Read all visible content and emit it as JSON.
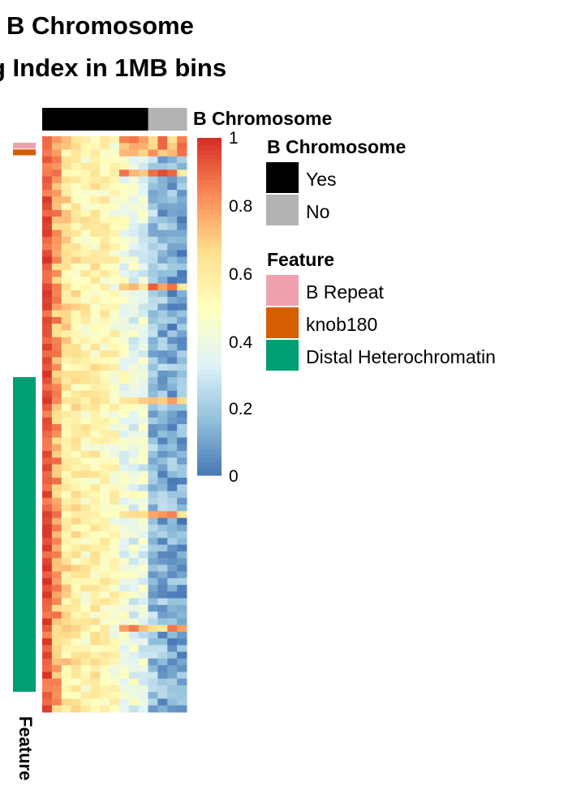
{
  "chart_data": {
    "type": "heatmap",
    "title": "B Chromosome",
    "subtitle": "g Index in 1MB bins",
    "columns": {
      "count": 15,
      "b_chromosome": [
        "Yes",
        "Yes",
        "Yes",
        "Yes",
        "Yes",
        "Yes",
        "Yes",
        "Yes",
        "Yes",
        "Yes",
        "Yes",
        "No",
        "No",
        "No",
        "No"
      ]
    },
    "rows": 86,
    "column_annotation": {
      "name": "B Chromosome",
      "levels": [
        {
          "label": "Yes",
          "color": "#000000"
        },
        {
          "label": "No",
          "color": "#b3b3b3"
        }
      ]
    },
    "row_annotation": {
      "name": "Feature",
      "levels": [
        {
          "label": "B Repeat",
          "color": "#efa2ae",
          "rows": [
            0
          ]
        },
        {
          "label": "knob180",
          "color": "#d55e00",
          "rows": [
            1
          ]
        },
        {
          "label": "Distal Heterochromatin",
          "color": "#009e73",
          "rows": [
            35,
            81
          ]
        }
      ]
    },
    "color_scale": {
      "min": 0,
      "max": 1,
      "ticks": [
        "1",
        "0.8",
        "0.6",
        "0.4",
        "0.2",
        "0"
      ],
      "colors": [
        "#4575b4",
        "#91bfdb",
        "#e0f3f8",
        "#ffffbf",
        "#fee090",
        "#fc8d59",
        "#d73027"
      ]
    }
  },
  "legend": {
    "b_title": "B Chromosome",
    "yes": "Yes",
    "no": "No",
    "f_title": "Feature",
    "brepeat": "B Repeat",
    "knob": "knob180",
    "distal": "Distal Heterochromatin"
  },
  "labels": {
    "col_annot": "B Chromosome",
    "row_annot": "Feature"
  },
  "colors": {
    "yes": "#000000",
    "no": "#b3b3b3",
    "brepeat": "#efa2ae",
    "knob": "#d55e00",
    "distal": "#009e73"
  }
}
